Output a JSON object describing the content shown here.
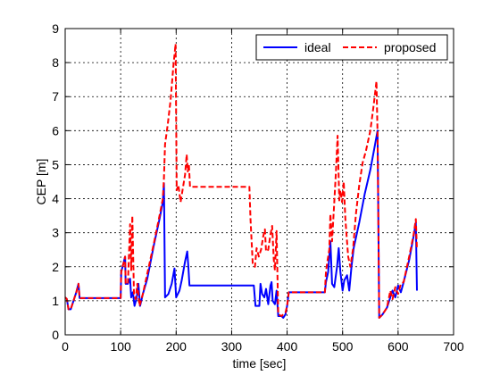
{
  "chart_data": {
    "type": "line",
    "title": "",
    "xlabel": "time [sec]",
    "ylabel": "CEP [m]",
    "xlim": [
      0,
      700
    ],
    "ylim": [
      0,
      9
    ],
    "xticks": [
      0,
      100,
      200,
      300,
      400,
      500,
      600,
      700
    ],
    "yticks": [
      0,
      1,
      2,
      3,
      4,
      5,
      6,
      7,
      8,
      9
    ],
    "grid": true,
    "legend_position": "top-right",
    "series": [
      {
        "name": "ideal",
        "color": "#0000ff",
        "style": "solid",
        "points": [
          [
            0,
            1.1
          ],
          [
            3,
            1.05
          ],
          [
            6,
            0.75
          ],
          [
            10,
            0.75
          ],
          [
            14,
            0.95
          ],
          [
            20,
            1.25
          ],
          [
            24,
            1.5
          ],
          [
            26,
            1.08
          ],
          [
            100,
            1.08
          ],
          [
            101,
            1.85
          ],
          [
            105,
            2.1
          ],
          [
            108,
            2.3
          ],
          [
            109,
            1.5
          ],
          [
            113,
            1.5
          ],
          [
            117,
            1.65
          ],
          [
            119,
            1.1
          ],
          [
            122,
            1.25
          ],
          [
            125,
            0.85
          ],
          [
            129,
            1.1
          ],
          [
            132,
            1.5
          ],
          [
            135,
            0.85
          ],
          [
            140,
            1.2
          ],
          [
            148,
            1.65
          ],
          [
            160,
            2.65
          ],
          [
            170,
            3.4
          ],
          [
            176,
            3.9
          ],
          [
            178,
            4.45
          ],
          [
            180,
            1.1
          ],
          [
            186,
            1.2
          ],
          [
            192,
            1.5
          ],
          [
            197,
            1.95
          ],
          [
            200,
            1.1
          ],
          [
            206,
            1.3
          ],
          [
            210,
            1.6
          ],
          [
            216,
            2.15
          ],
          [
            220,
            2.45
          ],
          [
            222,
            2.0
          ],
          [
            224,
            1.45
          ],
          [
            340,
            1.45
          ],
          [
            343,
            0.85
          ],
          [
            350,
            0.85
          ],
          [
            352,
            1.5
          ],
          [
            355,
            1.2
          ],
          [
            359,
            1.1
          ],
          [
            362,
            1.35
          ],
          [
            366,
            0.9
          ],
          [
            370,
            1.45
          ],
          [
            372,
            1.55
          ],
          [
            374,
            1.0
          ],
          [
            378,
            0.9
          ],
          [
            381,
            1.3
          ],
          [
            384,
            0.55
          ],
          [
            390,
            0.55
          ],
          [
            393,
            0.5
          ],
          [
            397,
            0.6
          ],
          [
            400,
            0.85
          ],
          [
            403,
            1.25
          ],
          [
            468,
            1.25
          ],
          [
            470,
            1.55
          ],
          [
            474,
            1.85
          ],
          [
            478,
            2.75
          ],
          [
            481,
            1.5
          ],
          [
            485,
            1.4
          ],
          [
            490,
            2.0
          ],
          [
            493,
            2.55
          ],
          [
            496,
            1.85
          ],
          [
            500,
            1.3
          ],
          [
            503,
            1.6
          ],
          [
            508,
            1.75
          ],
          [
            512,
            1.3
          ],
          [
            516,
            2.0
          ],
          [
            520,
            2.55
          ],
          [
            530,
            3.3
          ],
          [
            540,
            4.15
          ],
          [
            550,
            4.85
          ],
          [
            558,
            5.55
          ],
          [
            563,
            6.0
          ],
          [
            566,
            0.5
          ],
          [
            572,
            0.6
          ],
          [
            580,
            0.8
          ],
          [
            585,
            1.05
          ],
          [
            590,
            1.3
          ],
          [
            595,
            1.1
          ],
          [
            600,
            1.45
          ],
          [
            605,
            1.25
          ],
          [
            610,
            1.55
          ],
          [
            620,
            2.2
          ],
          [
            628,
            2.9
          ],
          [
            632,
            3.3
          ],
          [
            634,
            1.3
          ]
        ]
      },
      {
        "name": "proposed",
        "color": "#ff0000",
        "style": "dashed",
        "points": [
          [
            0,
            1.1
          ],
          [
            3,
            1.05
          ],
          [
            6,
            0.75
          ],
          [
            10,
            0.75
          ],
          [
            14,
            0.95
          ],
          [
            20,
            1.25
          ],
          [
            24,
            1.5
          ],
          [
            26,
            1.08
          ],
          [
            100,
            1.08
          ],
          [
            101,
            1.85
          ],
          [
            105,
            2.1
          ],
          [
            108,
            2.3
          ],
          [
            109,
            1.5
          ],
          [
            113,
            1.5
          ],
          [
            117,
            3.25
          ],
          [
            119,
            1.9
          ],
          [
            121,
            3.5
          ],
          [
            124,
            1.2
          ],
          [
            127,
            1.05
          ],
          [
            130,
            1.5
          ],
          [
            134,
            0.85
          ],
          [
            140,
            1.2
          ],
          [
            150,
            1.95
          ],
          [
            160,
            2.7
          ],
          [
            170,
            3.5
          ],
          [
            176,
            4.0
          ],
          [
            178,
            4.6
          ],
          [
            180,
            5.6
          ],
          [
            185,
            6.2
          ],
          [
            190,
            6.9
          ],
          [
            195,
            7.9
          ],
          [
            199,
            8.55
          ],
          [
            201,
            4.25
          ],
          [
            204,
            4.4
          ],
          [
            208,
            3.9
          ],
          [
            212,
            4.3
          ],
          [
            216,
            4.7
          ],
          [
            219,
            5.3
          ],
          [
            221,
            4.8
          ],
          [
            223,
            5.0
          ],
          [
            225,
            4.35
          ],
          [
            332,
            4.35
          ],
          [
            334,
            3.4
          ],
          [
            338,
            2.1
          ],
          [
            342,
            2.0
          ],
          [
            345,
            2.55
          ],
          [
            349,
            2.3
          ],
          [
            353,
            2.5
          ],
          [
            357,
            2.9
          ],
          [
            360,
            3.1
          ],
          [
            362,
            2.45
          ],
          [
            366,
            2.5
          ],
          [
            370,
            2.95
          ],
          [
            373,
            3.2
          ],
          [
            376,
            2.2
          ],
          [
            378,
            1.9
          ],
          [
            381,
            3.05
          ],
          [
            384,
            0.6
          ],
          [
            390,
            0.55
          ],
          [
            393,
            0.6
          ],
          [
            397,
            0.65
          ],
          [
            400,
            0.85
          ],
          [
            403,
            1.25
          ],
          [
            468,
            1.25
          ],
          [
            470,
            1.85
          ],
          [
            473,
            2.2
          ],
          [
            476,
            2.5
          ],
          [
            478,
            3.55
          ],
          [
            481,
            2.75
          ],
          [
            485,
            3.9
          ],
          [
            488,
            4.8
          ],
          [
            491,
            5.85
          ],
          [
            494,
            3.95
          ],
          [
            496,
            4.25
          ],
          [
            499,
            3.9
          ],
          [
            502,
            4.5
          ],
          [
            505,
            3.4
          ],
          [
            510,
            2.3
          ],
          [
            514,
            2.0
          ],
          [
            519,
            2.55
          ],
          [
            524,
            3.55
          ],
          [
            530,
            4.4
          ],
          [
            536,
            5.05
          ],
          [
            542,
            5.4
          ],
          [
            550,
            6.0
          ],
          [
            556,
            6.75
          ],
          [
            561,
            7.45
          ],
          [
            563,
            5.9
          ],
          [
            566,
            0.5
          ],
          [
            572,
            0.6
          ],
          [
            580,
            0.8
          ],
          [
            586,
            1.3
          ],
          [
            590,
            1.05
          ],
          [
            595,
            1.4
          ],
          [
            600,
            1.2
          ],
          [
            605,
            1.5
          ],
          [
            610,
            1.55
          ],
          [
            620,
            2.3
          ],
          [
            628,
            2.95
          ],
          [
            632,
            3.4
          ],
          [
            634,
            2.5
          ]
        ]
      }
    ]
  }
}
